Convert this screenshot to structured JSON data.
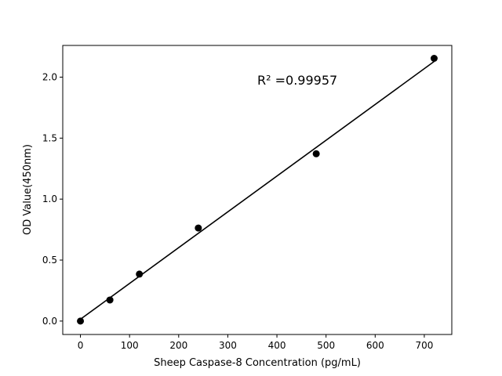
{
  "chart_data": {
    "type": "scatter",
    "title": "",
    "xlabel": "Sheep Caspase-8 Concentration (pg/mL)",
    "ylabel": "OD Value(450nm)",
    "xlim": [
      -36,
      756
    ],
    "ylim": [
      -0.11,
      2.26
    ],
    "xticks": [
      0,
      100,
      200,
      300,
      400,
      500,
      600,
      700
    ],
    "yticks": [
      "0.0",
      "0.5",
      "1.0",
      "1.5",
      "2.0"
    ],
    "grid": false,
    "points": {
      "x": [
        0,
        60,
        120,
        240,
        480,
        720
      ],
      "y": [
        0.0,
        0.173,
        0.385,
        0.763,
        1.372,
        2.154
      ],
      "color": "#000000"
    },
    "fit_line": {
      "x_range": [
        0,
        720
      ],
      "slope": 0.002935,
      "intercept": 0.015,
      "color": "#000000"
    },
    "annotation": "R² =0.99957"
  }
}
